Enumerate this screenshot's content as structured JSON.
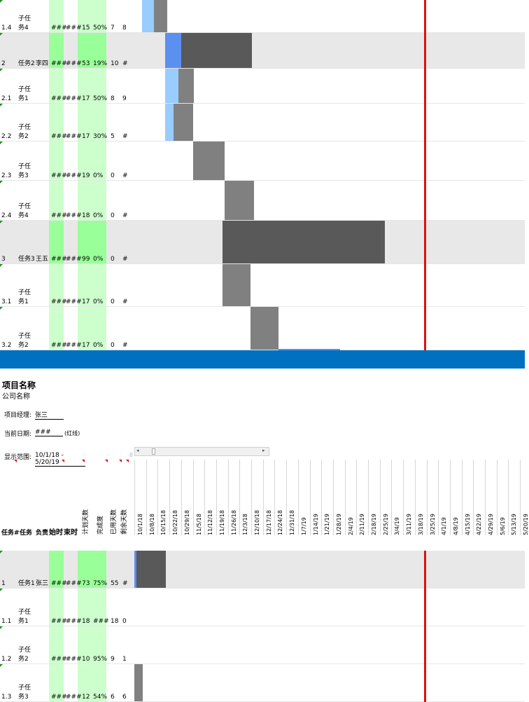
{
  "project": {
    "title": "项目名称",
    "company": "公司名称",
    "manager_label": "项目经理:",
    "manager_value": "张三",
    "date_label": "当前日期:",
    "date_value": "###",
    "date_note": "(红线)",
    "range_label": "显示范围:",
    "range_value": "10/1/18 - 5/20/19",
    "scroll_value": "8"
  },
  "headers": {
    "task_no": "任务#",
    "task": "任务",
    "owner": "负责",
    "start": "始时",
    "end": "束时",
    "planned_days": "计划天数",
    "pct": "完成度",
    "used_days": "已用天数",
    "remaining_days": "剩余天数"
  },
  "dates": [
    "10/1/18",
    "10/8/18",
    "10/15/18",
    "10/22/18",
    "10/29/18",
    "11/5/18",
    "11/12/18",
    "11/19/18",
    "11/26/18",
    "12/3/18",
    "12/10/18",
    "12/17/18",
    "12/24/18",
    "12/31/18",
    "1/7/19",
    "1/14/19",
    "1/21/19",
    "1/28/19",
    "2/4/19",
    "2/11/19",
    "2/18/19",
    "2/25/19",
    "3/4/19",
    "3/11/19",
    "3/18/19",
    "3/25/19",
    "4/1/19",
    "4/8/19",
    "4/15/19",
    "4/22/19",
    "4/29/19",
    "5/6/19",
    "5/13/19",
    "5/20/19"
  ],
  "top_rows": [
    {
      "id": "1.4",
      "name1": "子任",
      "name2": "务4",
      "owner": "",
      "start": "###",
      "end": "###",
      "days": "15",
      "pct": "50%",
      "used": "7",
      "rem": "8",
      "main": false
    },
    {
      "id": "2",
      "name1": "",
      "name2": "任务2",
      "owner": "李四",
      "start": "###",
      "end": "###",
      "days": "53",
      "pct": "19%",
      "used": "10",
      "rem": "#",
      "main": true
    },
    {
      "id": "2.1",
      "name1": "子任",
      "name2": "务1",
      "owner": "",
      "start": "###",
      "end": "###",
      "days": "17",
      "pct": "50%",
      "used": "8",
      "rem": "9",
      "main": false
    },
    {
      "id": "2.2",
      "name1": "子任",
      "name2": "务2",
      "owner": "",
      "start": "###",
      "end": "###",
      "days": "17",
      "pct": "30%",
      "used": "5",
      "rem": "#",
      "main": false
    },
    {
      "id": "2.3",
      "name1": "子任",
      "name2": "务3",
      "owner": "",
      "start": "###",
      "end": "###",
      "days": "19",
      "pct": "0%",
      "used": "0",
      "rem": "#",
      "main": false
    },
    {
      "id": "2.4",
      "name1": "子任",
      "name2": "务4",
      "owner": "",
      "start": "###",
      "end": "###",
      "days": "18",
      "pct": "0%",
      "used": "0",
      "rem": "#",
      "main": false
    },
    {
      "id": "3",
      "name1": "",
      "name2": "任务3",
      "owner": "王五",
      "start": "###",
      "end": "###",
      "days": "99",
      "pct": "0%",
      "used": "0",
      "rem": "#",
      "main": true
    },
    {
      "id": "3.1",
      "name1": "子任",
      "name2": "务1",
      "owner": "",
      "start": "###",
      "end": "###",
      "days": "17",
      "pct": "0%",
      "used": "0",
      "rem": "#",
      "main": false
    },
    {
      "id": "3.2",
      "name1": "子任",
      "name2": "务2",
      "owner": "",
      "start": "###",
      "end": "###",
      "days": "17",
      "pct": "0%",
      "used": "0",
      "rem": "#",
      "main": false
    }
  ],
  "bottom_rows": [
    {
      "id": "1",
      "name1": "",
      "name2": "任务1",
      "owner": "张三",
      "start": "###",
      "end": "###",
      "days": "73",
      "pct": "75%",
      "used": "55",
      "rem": "#",
      "main": true
    },
    {
      "id": "1.1",
      "name1": "子任",
      "name2": "务1",
      "owner": "",
      "start": "###",
      "end": "###",
      "days": "18",
      "pct": "###",
      "used": "18",
      "rem": "0",
      "main": false
    },
    {
      "id": "1.2",
      "name1": "子任",
      "name2": "务2",
      "owner": "",
      "start": "###",
      "end": "###",
      "days": "10",
      "pct": "95%",
      "used": "9",
      "rem": "1",
      "main": false
    },
    {
      "id": "1.3",
      "name1": "子任",
      "name2": "务3",
      "owner": "",
      "start": "###",
      "end": "###",
      "days": "12",
      "pct": "54%",
      "used": "6",
      "rem": "6",
      "main": false
    }
  ],
  "colors": {
    "green_band": "#ccffcc",
    "main_green": "#99ff99",
    "done_light": "#99ccff",
    "done_main": "#5b8ff0",
    "remaining_sub": "#808080",
    "remaining_main": "#595959",
    "today_line": "#e01010",
    "divider_blue": "#0070c0"
  }
}
